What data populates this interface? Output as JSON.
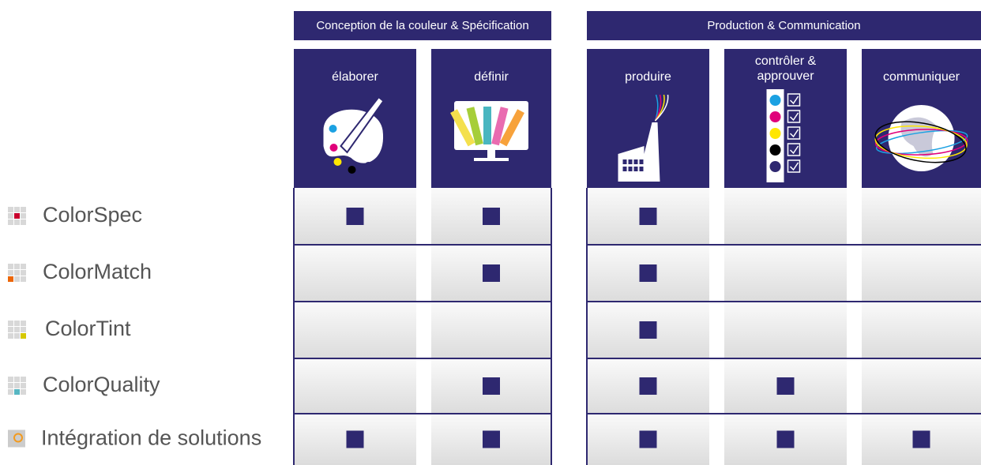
{
  "groups": [
    {
      "title": "Conception de la couleur & Spécification",
      "columns": [
        {
          "lines": [
            "élaborer"
          ]
        },
        {
          "lines": [
            "définir"
          ]
        }
      ]
    },
    {
      "title": "Production & Communication",
      "columns": [
        {
          "lines": [
            "produire"
          ]
        },
        {
          "lines": [
            "contrôler &",
            "approuver"
          ]
        },
        {
          "lines": [
            "communiquer"
          ]
        }
      ]
    }
  ],
  "rows": [
    {
      "label": "ColorSpec",
      "marks": [
        true,
        true,
        true,
        false,
        false
      ]
    },
    {
      "label": "ColorMatch",
      "marks": [
        false,
        true,
        true,
        false,
        false
      ]
    },
    {
      "label": "ColorTint",
      "marks": [
        false,
        false,
        true,
        false,
        false
      ]
    },
    {
      "label": "ColorQuality",
      "marks": [
        false,
        true,
        true,
        true,
        false
      ]
    },
    {
      "label": "Intégration de solutions",
      "marks": [
        true,
        true,
        true,
        true,
        true
      ]
    }
  ]
}
